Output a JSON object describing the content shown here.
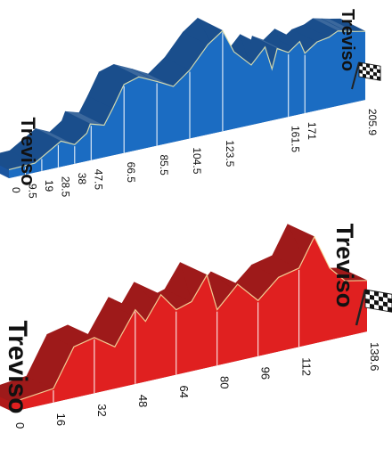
{
  "chart_data": [
    {
      "type": "area",
      "title": "",
      "start_label": "Treviso",
      "finish_label": "Treviso",
      "xlabel": "",
      "ylabel": "",
      "xlim": [
        0,
        205.9
      ],
      "x_ticks": [
        "0",
        "9.5",
        "19",
        "28.5",
        "38",
        "47.5",
        "66.5",
        "85.5",
        "104.5",
        "123.5",
        "161.5",
        "171",
        "205.9"
      ],
      "x_tick_values": [
        0,
        9.5,
        19,
        28.5,
        38,
        47.5,
        66.5,
        85.5,
        104.5,
        123.5,
        161.5,
        171,
        205.9
      ],
      "colors": {
        "top": "#1a4e8c",
        "side": "#1b6cc2",
        "base": "#1a55a0",
        "edge": "#fff7b0"
      },
      "series": [
        {
          "x": [
            0,
            15,
            30,
            38,
            45,
            47,
            55,
            60,
            66.5,
            75,
            85.5,
            95,
            104.5,
            115,
            123.5,
            130,
            140,
            148,
            152,
            155,
            161.5,
            168,
            171,
            178,
            185,
            190,
            195,
            200,
            205.9
          ],
          "values": [
            20,
            22,
            60,
            45,
            65,
            85,
            75,
            110,
            160,
            170,
            150,
            130,
            160,
            210,
            235,
            180,
            140,
            175,
            120,
            165,
            150,
            170,
            140,
            160,
            165,
            175,
            170,
            165,
            160
          ]
        }
      ]
    },
    {
      "type": "area",
      "title": "",
      "start_label": "Treviso",
      "finish_label": "Treviso",
      "xlabel": "",
      "ylabel": "",
      "xlim": [
        0,
        138.6
      ],
      "x_ticks": [
        "0",
        "16",
        "32",
        "48",
        "64",
        "80",
        "96",
        "112",
        "138.6"
      ],
      "x_tick_values": [
        0,
        16,
        32,
        48,
        64,
        80,
        96,
        112,
        138.6
      ],
      "colors": {
        "top": "#9e1a1a",
        "side": "#e02020",
        "base": "#b01818",
        "edge": "#fff7b0"
      },
      "series": [
        {
          "x": [
            0,
            16,
            24,
            32,
            40,
            48,
            52,
            58,
            64,
            70,
            76,
            80,
            88,
            96,
            104,
            112,
            118,
            124,
            130,
            138.6
          ],
          "values": [
            20,
            30,
            110,
            120,
            90,
            160,
            130,
            180,
            140,
            150,
            200,
            120,
            165,
            120,
            160,
            170,
            230,
            155,
            120,
            110
          ]
        }
      ]
    }
  ]
}
